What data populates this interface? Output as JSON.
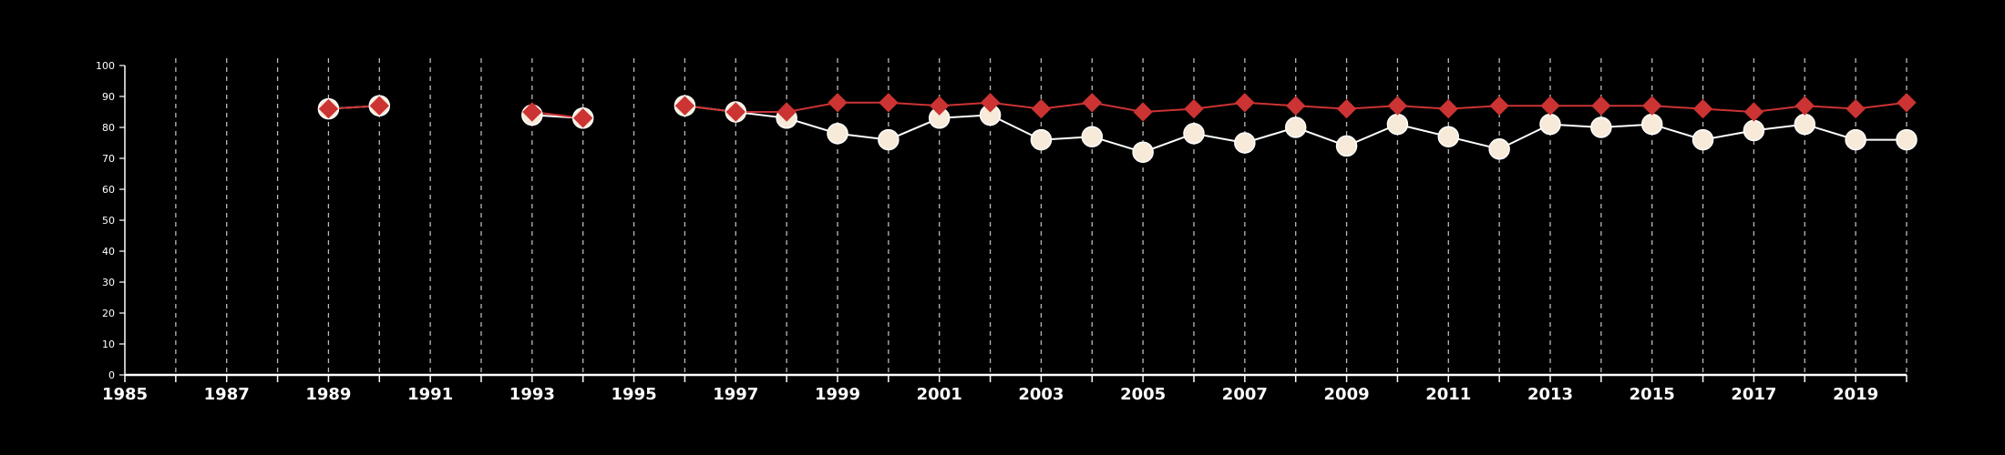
{
  "chart_data": {
    "type": "line",
    "title": "",
    "xlabel": "",
    "ylabel": "",
    "xlim": [
      1985,
      2020
    ],
    "ylim": [
      0,
      100
    ],
    "y_ticks": [
      0,
      10,
      20,
      30,
      40,
      50,
      60,
      70,
      80,
      90,
      100
    ],
    "x_tick_labels": [
      1985,
      1987,
      1989,
      1991,
      1993,
      1995,
      1997,
      1999,
      2001,
      2003,
      2005,
      2007,
      2009,
      2011,
      2013,
      2015,
      2017,
      2019
    ],
    "x_gridlines": "vertical dashed line at every year from 1986 to 2020",
    "legend": "none",
    "colors": {
      "background": "#000000",
      "axes": "#ffffff",
      "gridline": "#bbbbbb",
      "series_red": "#cc3333",
      "series_cream": "#f7ead8"
    },
    "series": [
      {
        "marker": "circle",
        "color": "#f7ead8",
        "x": [
          1989,
          1990,
          1993,
          1994,
          1996,
          1997,
          1998,
          1999,
          2000,
          2001,
          2002,
          2003,
          2004,
          2005,
          2006,
          2007,
          2008,
          2009,
          2010,
          2011,
          2012,
          2013,
          2014,
          2015,
          2016,
          2017,
          2018,
          2019,
          2020
        ],
        "y": [
          86,
          87,
          84,
          83,
          87,
          85,
          83,
          78,
          76,
          83,
          84,
          76,
          77,
          72,
          78,
          75,
          80,
          74,
          81,
          77,
          73,
          81,
          80,
          81,
          76,
          79,
          81,
          76,
          76
        ]
      },
      {
        "marker": "diamond",
        "color": "#cc3333",
        "x": [
          1989,
          1990,
          1993,
          1994,
          1996,
          1997,
          1998,
          1999,
          2000,
          2001,
          2002,
          2003,
          2004,
          2005,
          2006,
          2007,
          2008,
          2009,
          2010,
          2011,
          2012,
          2013,
          2014,
          2015,
          2016,
          2017,
          2018,
          2019,
          2020
        ],
        "y": [
          86,
          87,
          85,
          83,
          87,
          85,
          85,
          88,
          88,
          87,
          88,
          86,
          88,
          85,
          86,
          88,
          87,
          86,
          87,
          86,
          87,
          87,
          87,
          87,
          86,
          85,
          87,
          86,
          88
        ]
      }
    ]
  }
}
